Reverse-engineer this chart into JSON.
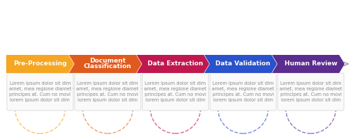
{
  "steps": [
    {
      "title": "Pre-Processing",
      "color": "#F5A623",
      "dot_color": "#F5A623",
      "text_color": "#FFFFFF",
      "icon_color": "#F5A623"
    },
    {
      "title": "Document\nClassification",
      "color": "#E05A1E",
      "dot_color": "#C0392B",
      "text_color": "#FFFFFF",
      "icon_color": "#E07030"
    },
    {
      "title": "Data Extraction",
      "color": "#C0174F",
      "dot_color": "#C0174F",
      "text_color": "#FFFFFF",
      "icon_color": "#C0174F"
    },
    {
      "title": "Data Validation",
      "color": "#2952CC",
      "dot_color": "#2952CC",
      "text_color": "#FFFFFF",
      "icon_color": "#2952CC"
    },
    {
      "title": "Human Review",
      "color": "#5B2D8E",
      "dot_color": "#5B2D8E",
      "text_color": "#FFFFFF",
      "icon_color": "#5B2D8E"
    }
  ],
  "lorem_text": "Lorem ipsum dolor sit dim\namet, mea regione diamet\nprincipes at. Cum no movi\nlorem ipsum dolor sit dim",
  "background_color": "#FFFFFF",
  "arrow_line_color": "#CCCCCC",
  "box_border_color": "#DDDDDD",
  "box_bg_color": "#FAFAFA",
  "label_text_color": "#FFFFFF",
  "body_text_color": "#888888",
  "title_fontsize": 6.5,
  "body_fontsize": 4.8,
  "figsize": [
    5.05,
    2.0
  ],
  "dpi": 100
}
